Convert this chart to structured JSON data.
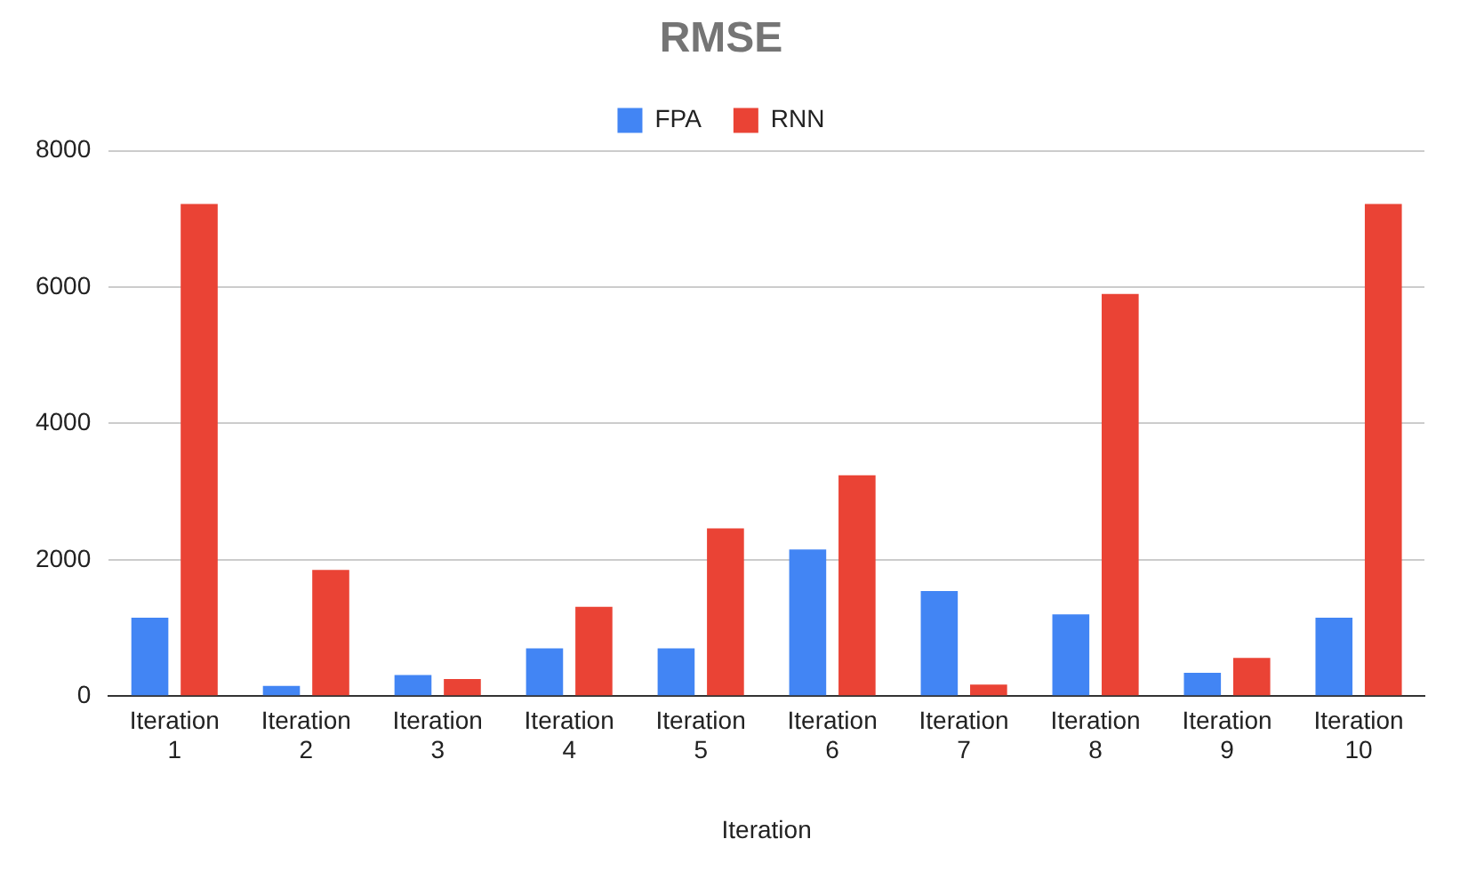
{
  "chart_data": {
    "type": "bar",
    "title": "RMSE",
    "xlabel": "Iteration",
    "categories": [
      "Iteration 1",
      "Iteration 2",
      "Iteration 3",
      "Iteration 4",
      "Iteration 5",
      "Iteration 6",
      "Iteration 7",
      "Iteration 8",
      "Iteration 9",
      "Iteration 10"
    ],
    "series": [
      {
        "name": "FPA",
        "color": "#4285f4",
        "values": [
          1150,
          150,
          310,
          700,
          700,
          2150,
          1540,
          1200,
          340,
          1150
        ]
      },
      {
        "name": "RNN",
        "color": "#ea4335",
        "values": [
          7220,
          1850,
          250,
          1310,
          2460,
          3240,
          170,
          5900,
          560,
          7220
        ]
      }
    ],
    "ylim": [
      0,
      8000
    ],
    "yticks": [
      0,
      2000,
      4000,
      6000,
      8000
    ],
    "grid": "y",
    "legend": "top"
  }
}
